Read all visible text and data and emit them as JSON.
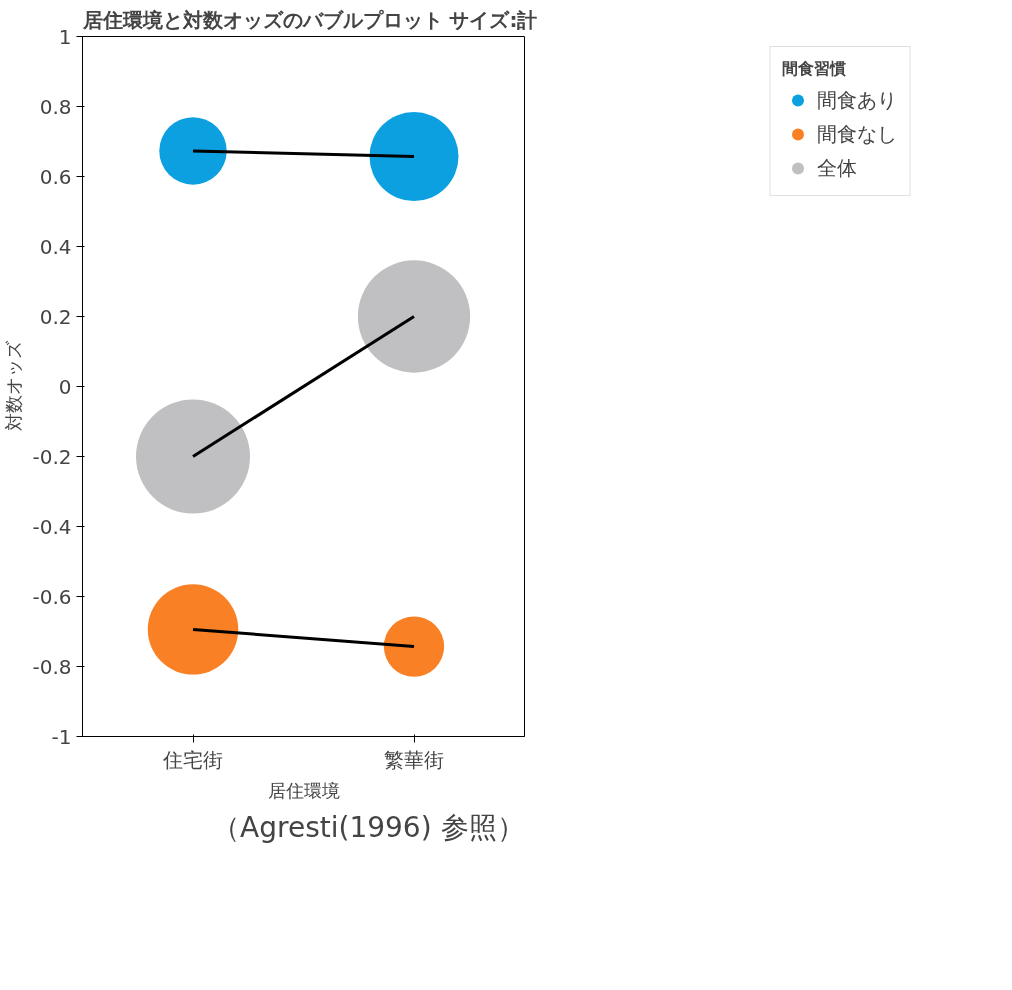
{
  "chart_data": {
    "type": "bubble",
    "title": "居住環境と対数オッズのバブルプロット サイズ:計",
    "xlabel": "居住環境",
    "ylabel": "対数オッズ",
    "legend_title": "間食習慣",
    "categories": [
      "住宅街",
      "繁華街"
    ],
    "series": [
      {
        "type": "line",
        "color": "#000000",
        "values": [
          0.673,
          0.657
        ]
      },
      {
        "type": "line",
        "color": "#000000",
        "values": [
          -0.2,
          0.2
        ]
      },
      {
        "type": "line",
        "color": "#000000",
        "values": [
          -0.694,
          -0.743
        ]
      },
      {
        "name": "間食あり",
        "color": "#0ca0e0",
        "values": [
          0.673,
          0.657
        ],
        "sizes": [
          0.35,
          0.61
        ]
      },
      {
        "name": "間食なし",
        "color": "#f98024",
        "values": [
          -0.694,
          -0.743
        ],
        "sizes": [
          0.63,
          0.28
        ]
      },
      {
        "name": "全体",
        "color": "#c0c0c2",
        "values": [
          -0.2,
          0.2
        ],
        "sizes": [
          1,
          0.97
        ]
      }
    ],
    "ylim": [
      -1,
      1
    ],
    "yticks": [
      -1,
      -0.8,
      -0.6,
      -0.4,
      -0.2,
      0,
      0.2,
      0.4,
      0.6,
      0.8,
      1
    ],
    "grid": false,
    "legend": "right",
    "annotations": [
      "（Agresti(1996) 参照）"
    ]
  }
}
